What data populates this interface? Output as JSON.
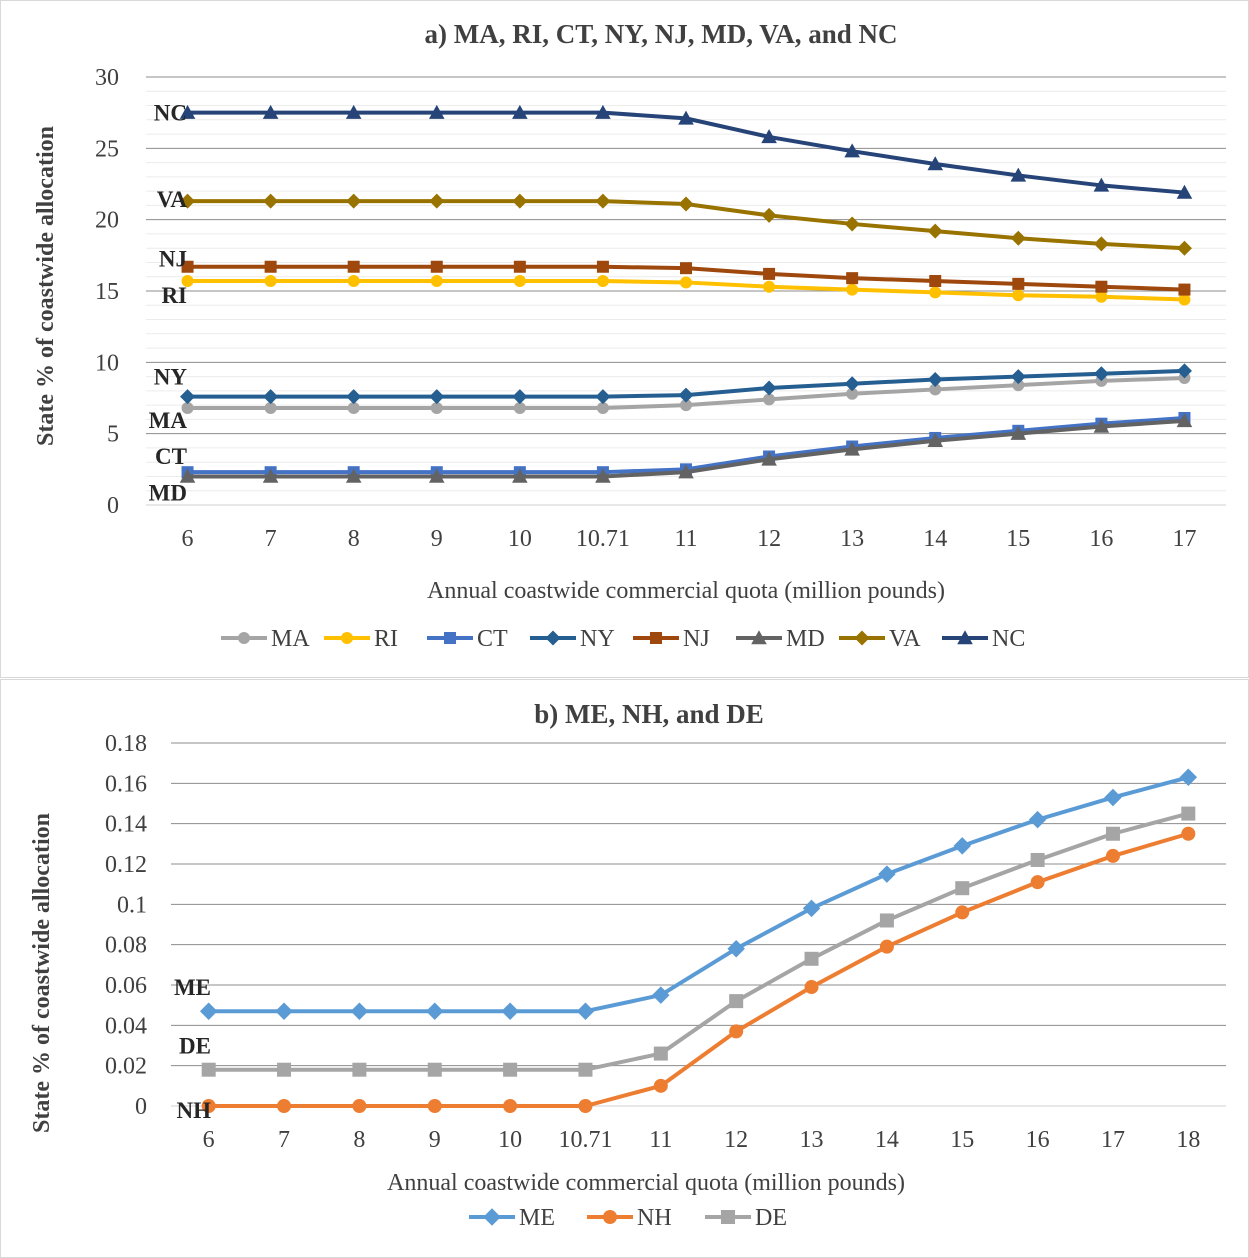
{
  "chart_data": [
    {
      "type": "line",
      "title": "a) MA, RI, CT, NY, NJ, MD, VA, and NC",
      "ylabel": "State % of coastwide allocation",
      "xlabel": "Annual coastwide commercial quota (million pounds)",
      "categories": [
        "6",
        "7",
        "8",
        "9",
        "10",
        "10.71",
        "11",
        "12",
        "13",
        "14",
        "15",
        "16",
        "17"
      ],
      "ylim": [
        0,
        30
      ],
      "yticks": [
        "0",
        "5",
        "10",
        "15",
        "20",
        "25",
        "30"
      ],
      "grid": true,
      "legend_position": "bottom",
      "series": [
        {
          "name": "MA",
          "label": "MA",
          "color": "#a5a5a5",
          "marker": "circle",
          "values": [
            6.8,
            6.8,
            6.8,
            6.8,
            6.8,
            6.8,
            7.0,
            7.4,
            7.8,
            8.1,
            8.4,
            8.7,
            8.9
          ]
        },
        {
          "name": "RI",
          "label": "RI",
          "color": "#ffc000",
          "marker": "circle",
          "values": [
            15.7,
            15.7,
            15.7,
            15.7,
            15.7,
            15.7,
            15.6,
            15.3,
            15.1,
            14.9,
            14.7,
            14.6,
            14.4
          ]
        },
        {
          "name": "CT",
          "label": "CT",
          "color": "#4472c4",
          "marker": "square",
          "values": [
            2.3,
            2.3,
            2.3,
            2.3,
            2.3,
            2.3,
            2.5,
            3.4,
            4.1,
            4.7,
            5.2,
            5.7,
            6.1
          ]
        },
        {
          "name": "NY",
          "label": "NY",
          "color": "#255e91",
          "marker": "diamond",
          "values": [
            7.6,
            7.6,
            7.6,
            7.6,
            7.6,
            7.6,
            7.7,
            8.2,
            8.5,
            8.8,
            9.0,
            9.2,
            9.4
          ]
        },
        {
          "name": "NJ",
          "label": "NJ",
          "color": "#9e480e",
          "marker": "square",
          "values": [
            16.7,
            16.7,
            16.7,
            16.7,
            16.7,
            16.7,
            16.6,
            16.2,
            15.9,
            15.7,
            15.5,
            15.3,
            15.1
          ]
        },
        {
          "name": "MD",
          "label": "MD",
          "color": "#636363",
          "marker": "triangle",
          "values": [
            2.0,
            2.0,
            2.0,
            2.0,
            2.0,
            2.0,
            2.3,
            3.2,
            3.9,
            4.5,
            5.0,
            5.5,
            5.9
          ]
        },
        {
          "name": "VA",
          "label": "VA",
          "color": "#997300",
          "marker": "diamond",
          "values": [
            21.3,
            21.3,
            21.3,
            21.3,
            21.3,
            21.3,
            21.1,
            20.3,
            19.7,
            19.2,
            18.7,
            18.3,
            18.0
          ]
        },
        {
          "name": "NC",
          "label": "NC",
          "color": "#264478",
          "marker": "triangle",
          "values": [
            27.5,
            27.5,
            27.5,
            27.5,
            27.5,
            27.5,
            27.1,
            25.8,
            24.8,
            23.9,
            23.1,
            22.4,
            21.9
          ]
        }
      ]
    },
    {
      "type": "line",
      "title": "b) ME, NH, and DE",
      "ylabel": "State % of coastwide allocation",
      "xlabel": "Annual coastwide commercial quota (million pounds)",
      "categories": [
        "6",
        "7",
        "8",
        "9",
        "10",
        "10.71",
        "11",
        "12",
        "13",
        "14",
        "15",
        "16",
        "17",
        "18"
      ],
      "ylim": [
        0,
        0.18
      ],
      "yticks": [
        "0",
        "0.02",
        "0.04",
        "0.06",
        "0.08",
        "0.1",
        "0.12",
        "0.14",
        "0.16",
        "0.18"
      ],
      "grid": true,
      "legend_position": "bottom",
      "series": [
        {
          "name": "ME",
          "label": "ME",
          "color": "#5b9bd5",
          "marker": "diamond",
          "values": [
            0.047,
            0.047,
            0.047,
            0.047,
            0.047,
            0.047,
            0.055,
            0.078,
            0.098,
            0.115,
            0.129,
            0.142,
            0.153,
            0.163
          ]
        },
        {
          "name": "NH",
          "label": "NH",
          "color": "#ed7d31",
          "marker": "circle",
          "values": [
            0.0,
            0.0,
            0.0,
            0.0,
            0.0,
            0.0,
            0.01,
            0.037,
            0.059,
            0.079,
            0.096,
            0.111,
            0.124,
            0.135
          ]
        },
        {
          "name": "DE",
          "label": "DE",
          "color": "#a5a5a5",
          "marker": "square",
          "values": [
            0.018,
            0.018,
            0.018,
            0.018,
            0.018,
            0.018,
            0.026,
            0.052,
            0.073,
            0.092,
            0.108,
            0.122,
            0.135,
            0.145
          ]
        }
      ]
    }
  ]
}
